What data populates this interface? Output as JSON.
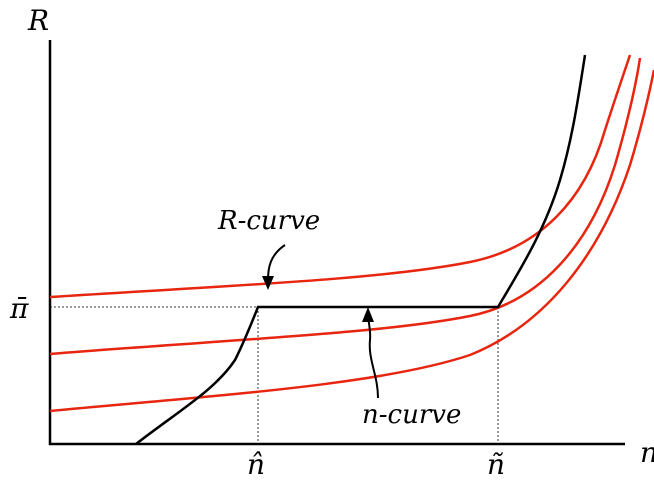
{
  "axes": {
    "y_label": "R",
    "x_label": "n"
  },
  "ticks": {
    "y_pi_bar": "π̄",
    "x_n_hat": "n̂",
    "x_n_tilde": "ñ"
  },
  "annotations": {
    "r_curve": "R-curve",
    "n_curve": "n-curve"
  },
  "colors": {
    "r_curves": "#e8250e",
    "n_curve": "#000000",
    "axes": "#000000"
  }
}
